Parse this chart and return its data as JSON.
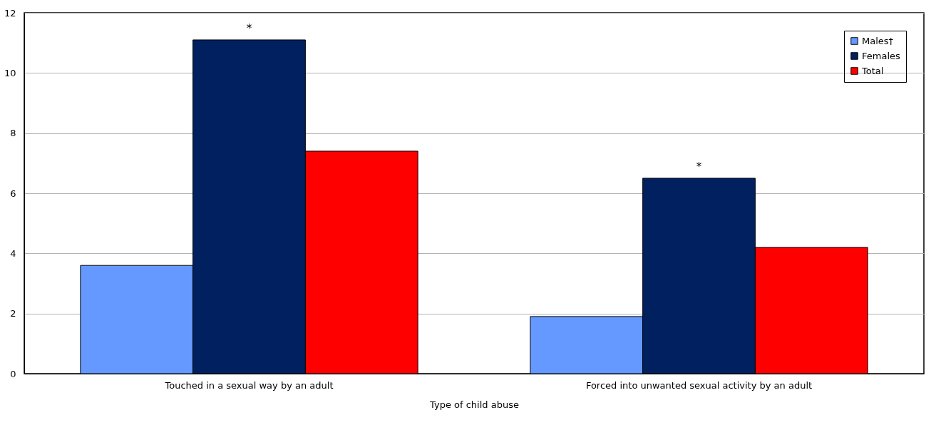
{
  "chart_data": {
    "type": "bar",
    "xlabel": "Type of child abuse",
    "categories": [
      "Touched in a sexual way by an adult",
      "Forced into unwanted sexual activity by an adult"
    ],
    "series": [
      {
        "name": "Males†",
        "color": "#6699ff",
        "values": [
          3.6,
          1.9
        ]
      },
      {
        "name": "Females",
        "color": "#002060",
        "values": [
          11.1,
          6.5
        ]
      },
      {
        "name": "Total",
        "color": "#ff0000",
        "values": [
          7.4,
          4.2
        ]
      }
    ],
    "ylim": [
      0,
      12
    ],
    "yticks": [
      0,
      2,
      4,
      6,
      8,
      10,
      12
    ],
    "grid": "y",
    "legend": "top right",
    "annotations": [
      {
        "text": "*",
        "x": "Touched in a sexual way by an adult",
        "y": 11.1
      },
      {
        "text": "*",
        "x": "Forced into unwanted sexual activity by an adult",
        "y": 6.5
      }
    ]
  }
}
